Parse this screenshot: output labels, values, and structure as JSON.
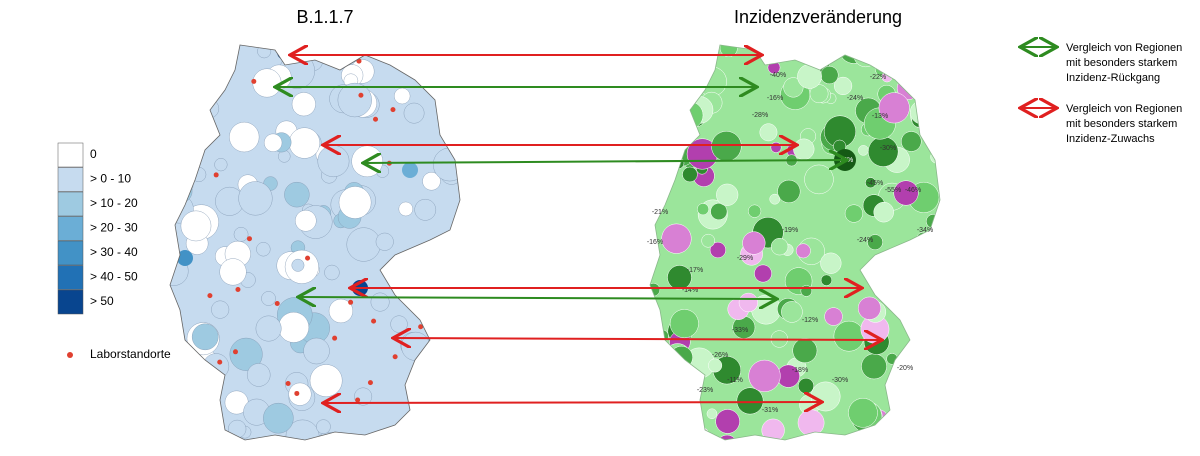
{
  "titles": {
    "left": "B.1.1.7",
    "right": "Inzidenzveränderung"
  },
  "legend": {
    "items": [
      {
        "label": "0",
        "color": "#ffffff"
      },
      {
        "label": "> 0 - 10",
        "color": "#c6dbef"
      },
      {
        "label": "> 10 - 20",
        "color": "#9ecae1"
      },
      {
        "label": "> 20 - 30",
        "color": "#6baed6"
      },
      {
        "label": "> 30 - 40",
        "color": "#4292c6"
      },
      {
        "label": "> 40 - 50",
        "color": "#2171b5"
      },
      {
        "label": "> 50",
        "color": "#08458f"
      }
    ],
    "lab_marker": "Laborstandorte"
  },
  "arrow_legend": {
    "green": [
      "Vergleich von Regionen",
      "mit besonders starkem",
      "Inzidenz-Rückgang"
    ],
    "red": [
      "Vergleich von Regionen",
      "mit besonders starkem",
      "Inzidenz-Zuwachs"
    ]
  },
  "region_labels": [
    "-22%",
    "-24%",
    "-13%",
    "-16%",
    "-40%",
    "-28%",
    "-75%",
    "-30%",
    "-55%",
    "-46%",
    "-45%",
    "-34%",
    "-21%",
    "-16%",
    "-17%",
    "-29%",
    "-26%",
    "-31%",
    "-20%",
    "-11%",
    "-18%",
    "-23%",
    "-30%",
    "-24%",
    "-19%",
    "-14%",
    "-33%",
    "-12%"
  ]
}
